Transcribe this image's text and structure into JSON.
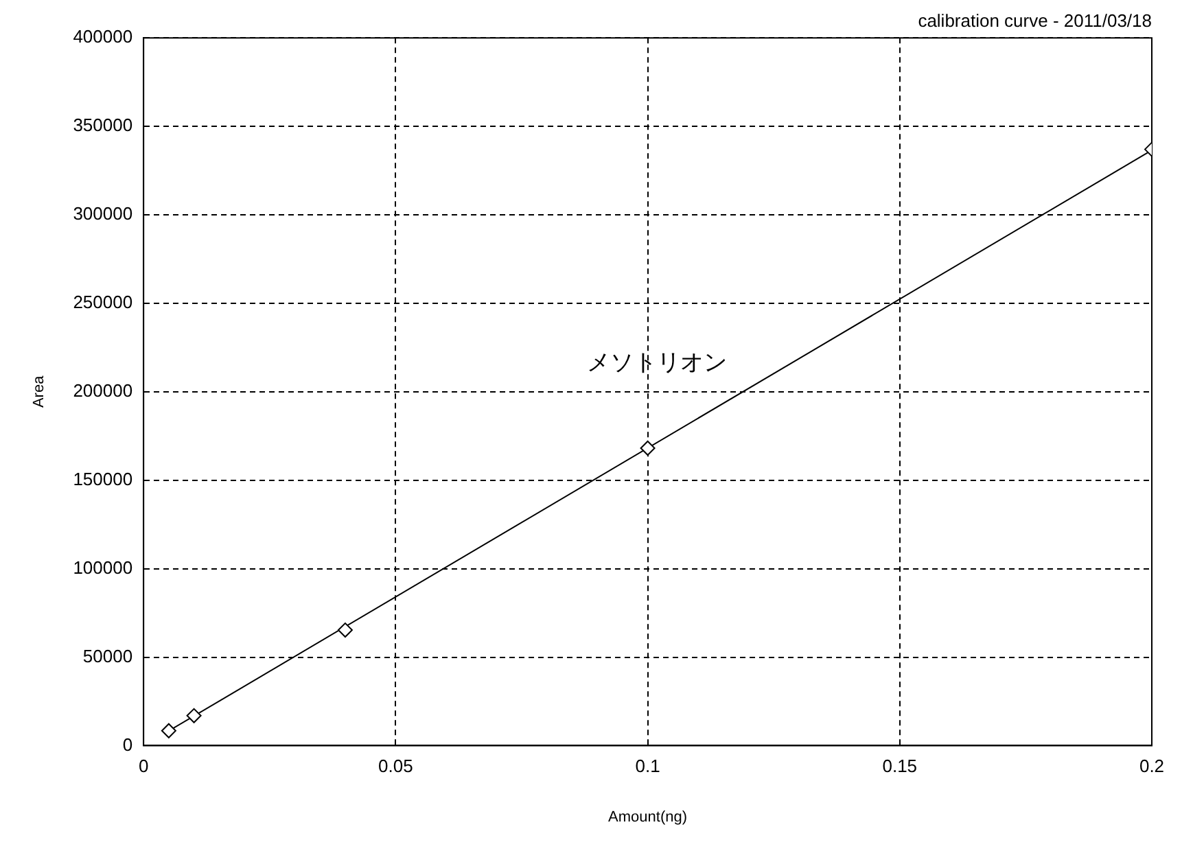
{
  "chart_data": {
    "type": "scatter",
    "title": "calibration curve - 2011/03/18",
    "xlabel": "Amount(ng)",
    "ylabel": "Area",
    "annotations": [
      "メソトリオン"
    ],
    "xlim": [
      0,
      0.2
    ],
    "xticks": [
      0,
      0.05,
      0.1,
      0.15,
      0.2
    ],
    "ylim": [
      0,
      400000
    ],
    "yticks": [
      0,
      50000,
      100000,
      150000,
      200000,
      250000,
      300000,
      350000,
      400000
    ],
    "grid": true,
    "legend": false,
    "marker": "diamond",
    "series": [
      {
        "type": "scatter",
        "color": "#000000",
        "x": [
          0.005,
          0.01,
          0.04,
          0.1,
          0.2
        ],
        "values": [
          8400,
          16900,
          65300,
          168100,
          337000
        ]
      },
      {
        "type": "line",
        "color": "#000000",
        "x": [
          0.005,
          0.2
        ],
        "values": [
          8300,
          336500
        ],
        "marker": "none",
        "line_style": "solid"
      }
    ]
  }
}
